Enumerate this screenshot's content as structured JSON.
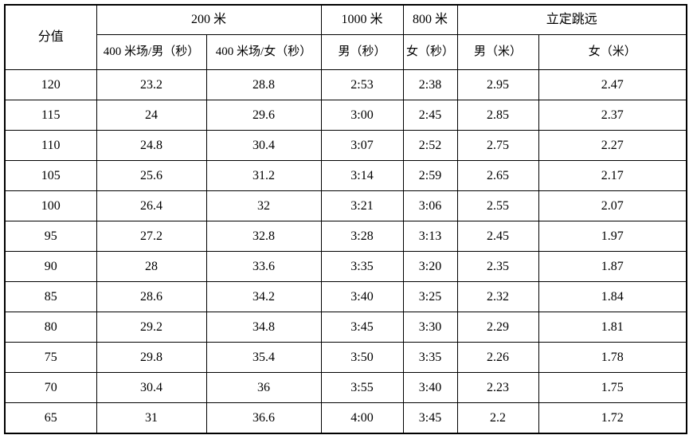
{
  "table": {
    "header1": {
      "score": "分值",
      "m200": "200 米",
      "m1000": "1000 米",
      "m800": "800 米",
      "jump": "立定跳远"
    },
    "header2": {
      "m200_male": "400 米场/男（秒）",
      "m200_female": "400 米场/女（秒）",
      "m1000_male": "男（秒）",
      "m800_female": "女（秒）",
      "jump_male": "男（米）",
      "jump_female": "女（米）"
    },
    "rows": [
      [
        "120",
        "23.2",
        "28.8",
        "2:53",
        "2:38",
        "2.95",
        "2.47"
      ],
      [
        "115",
        "24",
        "29.6",
        "3:00",
        "2:45",
        "2.85",
        "2.37"
      ],
      [
        "110",
        "24.8",
        "30.4",
        "3:07",
        "2:52",
        "2.75",
        "2.27"
      ],
      [
        "105",
        "25.6",
        "31.2",
        "3:14",
        "2:59",
        "2.65",
        "2.17"
      ],
      [
        "100",
        "26.4",
        "32",
        "3:21",
        "3:06",
        "2.55",
        "2.07"
      ],
      [
        "95",
        "27.2",
        "32.8",
        "3:28",
        "3:13",
        "2.45",
        "1.97"
      ],
      [
        "90",
        "28",
        "33.6",
        "3:35",
        "3:20",
        "2.35",
        "1.87"
      ],
      [
        "85",
        "28.6",
        "34.2",
        "3:40",
        "3:25",
        "2.32",
        "1.84"
      ],
      [
        "80",
        "29.2",
        "34.8",
        "3:45",
        "3:30",
        "2.29",
        "1.81"
      ],
      [
        "75",
        "29.8",
        "35.4",
        "3:50",
        "3:35",
        "2.26",
        "1.78"
      ],
      [
        "70",
        "30.4",
        "36",
        "3:55",
        "3:40",
        "2.23",
        "1.75"
      ],
      [
        "65",
        "31",
        "36.6",
        "4:00",
        "3:45",
        "2.2",
        "1.72"
      ]
    ],
    "colors": {
      "border": "#000000",
      "text": "#000000",
      "background": "#ffffff"
    }
  }
}
